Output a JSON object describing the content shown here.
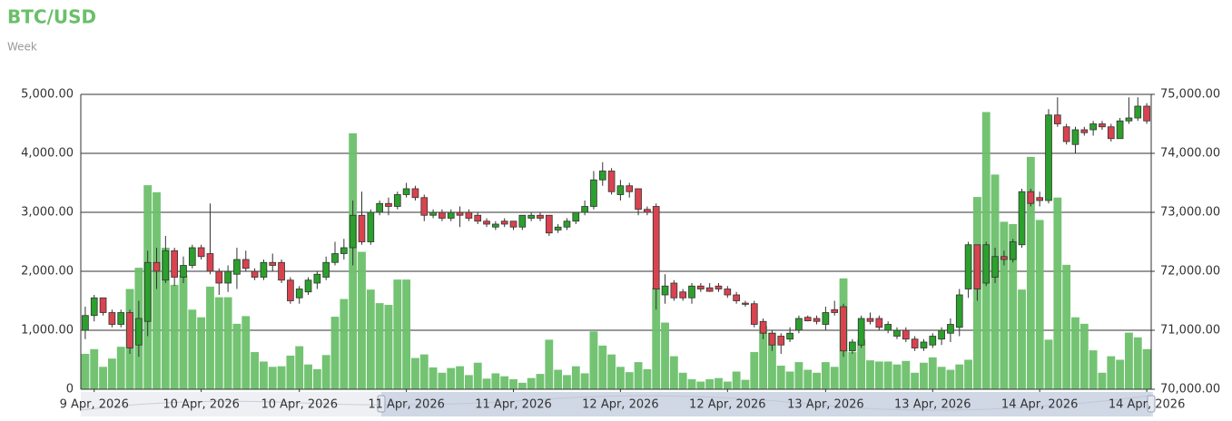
{
  "chart_data": {
    "type": "candlestick",
    "title": "BTC/USD",
    "subtitle": "Week",
    "categories": [
      null,
      "9 Apr, 2026",
      null,
      null,
      null,
      null,
      null,
      null,
      null,
      null,
      null,
      null,
      null,
      "10 Apr, 2026",
      null,
      null,
      null,
      null,
      null,
      null,
      null,
      null,
      null,
      null,
      "10 Apr, 2026",
      null,
      null,
      null,
      null,
      null,
      null,
      null,
      null,
      null,
      null,
      null,
      "11 Apr, 2026",
      null,
      null,
      null,
      null,
      null,
      null,
      null,
      null,
      null,
      null,
      null,
      "11 Apr, 2026",
      null,
      null,
      null,
      null,
      null,
      null,
      null,
      null,
      null,
      null,
      null,
      "12 Apr, 2026",
      null,
      null,
      null,
      null,
      null,
      null,
      null,
      null,
      null,
      null,
      null,
      "12 Apr, 2026",
      null,
      null,
      null,
      null,
      null,
      null,
      null,
      null,
      null,
      null,
      "13 Apr, 2026",
      null,
      null,
      null,
      null,
      null,
      null,
      null,
      null,
      null,
      null,
      null,
      "13 Apr, 2026",
      null,
      null,
      null,
      null,
      null,
      null,
      null,
      null,
      null,
      null,
      null,
      "14 Apr, 2026",
      null,
      null,
      null,
      null,
      null,
      null,
      null,
      null,
      null,
      null,
      null,
      "14 Apr, 2026"
    ],
    "ylim": [
      0,
      5000
    ],
    "yticks": [
      0,
      {
        "value": 1000,
        "label": "1,000.00"
      },
      {
        "value": 2000,
        "label": "2,000.00"
      },
      {
        "value": 3000,
        "label": "3,000.00"
      },
      {
        "value": 4000,
        "label": "4,000.00"
      },
      {
        "value": 5000,
        "label": "5,000.00"
      }
    ],
    "y2lim": [
      70000,
      75000
    ],
    "y2ticks": [
      {
        "value": 70000,
        "label": "70,000.00"
      },
      {
        "value": 71000,
        "label": "71,000.00"
      },
      {
        "value": 72000,
        "label": "72,000.00"
      },
      {
        "value": 73000,
        "label": "73,000.00"
      },
      {
        "value": 74000,
        "label": "74,000.00"
      },
      {
        "value": 75000,
        "label": "75,000.00"
      }
    ],
    "grid": true,
    "volume": {
      "color": "#6cc06c",
      "values": [
        600,
        680,
        380,
        520,
        720,
        1700,
        2060,
        3460,
        3340,
        2400,
        1770,
        1930,
        1350,
        1220,
        1740,
        1560,
        1560,
        1110,
        1240,
        630,
        470,
        380,
        390,
        570,
        730,
        420,
        340,
        580,
        1230,
        1530,
        4340,
        2330,
        1690,
        1460,
        1430,
        1860,
        1860,
        530,
        590,
        370,
        280,
        360,
        390,
        240,
        450,
        180,
        270,
        220,
        170,
        110,
        190,
        260,
        840,
        330,
        240,
        390,
        270,
        980,
        740,
        590,
        380,
        290,
        460,
        340,
        1720,
        1130,
        560,
        280,
        170,
        130,
        170,
        190,
        130,
        300,
        160,
        630,
        1070,
        960,
        400,
        300,
        460,
        330,
        280,
        460,
        380,
        1880,
        630,
        840,
        490,
        470,
        470,
        420,
        480,
        280,
        450,
        540,
        380,
        330,
        420,
        500,
        3260,
        4700,
        3640,
        2840,
        2800,
        1690,
        3940,
        2870,
        840,
        3250,
        2110,
        1220,
        1110,
        660,
        280,
        560,
        500,
        960,
        880,
        680
      ]
    },
    "ohlc": {
      "axis": "y2",
      "up_color": "#2ca02c",
      "down_color": "#d9434f",
      "open": [
        71000,
        71250,
        71550,
        71300,
        71100,
        71300,
        70750,
        71150,
        72150,
        71850,
        72350,
        71900,
        72100,
        72400,
        72300,
        72000,
        71800,
        71950,
        72200,
        72000,
        71900,
        72150,
        72150,
        71850,
        71550,
        71650,
        71800,
        71900,
        72150,
        72300,
        72400,
        72950,
        72500,
        73000,
        73150,
        73100,
        73300,
        73400,
        73250,
        72950,
        73000,
        72900,
        73000,
        73000,
        72950,
        72850,
        72750,
        72850,
        72850,
        72750,
        72900,
        72950,
        72950,
        72700,
        72750,
        72850,
        73000,
        73100,
        73550,
        73700,
        73300,
        73450,
        73400,
        73050,
        73100,
        71600,
        71800,
        71650,
        71550,
        71750,
        71720,
        71750,
        71700,
        71600,
        71460,
        71450,
        71150,
        70950,
        70900,
        70850,
        71000,
        71220,
        71200,
        71100,
        71350,
        71400,
        70650,
        70750,
        71200,
        71200,
        71000,
        70900,
        71000,
        70850,
        70700,
        70750,
        70850,
        70950,
        71050,
        71700,
        72450,
        71800,
        71900,
        72250,
        72200,
        72450,
        73350,
        73250,
        73200,
        74650,
        74450,
        74150,
        74400,
        74400,
        74500,
        74450,
        74250,
        74550,
        74600,
        74800
      ],
      "high": [
        71400,
        71600,
        71550,
        71350,
        71350,
        71350,
        71500,
        72350,
        72400,
        72600,
        72400,
        72250,
        72450,
        72450,
        73150,
        72050,
        72100,
        72400,
        72350,
        72050,
        72200,
        72300,
        72200,
        71900,
        71750,
        71900,
        72000,
        72250,
        72500,
        72550,
        73200,
        73350,
        73050,
        73200,
        73250,
        73350,
        73500,
        73450,
        73300,
        73050,
        73050,
        73050,
        73100,
        73050,
        73000,
        72900,
        72850,
        72900,
        72850,
        72950,
        73000,
        73000,
        72950,
        72800,
        72900,
        73000,
        73200,
        73700,
        73850,
        73750,
        73550,
        73500,
        73400,
        73100,
        73150,
        71950,
        71850,
        71700,
        71800,
        71800,
        71800,
        71800,
        71750,
        71650,
        71500,
        71500,
        71200,
        71000,
        70950,
        71050,
        71250,
        71250,
        71250,
        71400,
        71500,
        71450,
        70850,
        71250,
        71300,
        71250,
        71150,
        71050,
        71050,
        70900,
        70850,
        70950,
        71050,
        71200,
        71700,
        72500,
        72450,
        72500,
        72400,
        72350,
        72550,
        73400,
        73400,
        73350,
        74750,
        74950,
        74500,
        74450,
        74450,
        74550,
        74550,
        74500,
        74600,
        74950,
        74950,
        74850
      ],
      "low": [
        70850,
        71150,
        71250,
        71050,
        71050,
        70600,
        70550,
        70900,
        71700,
        71800,
        71750,
        71800,
        72050,
        72200,
        71950,
        71600,
        71650,
        71700,
        72000,
        71850,
        71850,
        72000,
        71800,
        71450,
        71450,
        71600,
        71700,
        71850,
        72100,
        72200,
        72100,
        72450,
        72450,
        72950,
        72950,
        73050,
        73250,
        73200,
        72850,
        72900,
        72850,
        72850,
        72750,
        72850,
        72800,
        72750,
        72700,
        72750,
        72700,
        72700,
        72850,
        72850,
        72600,
        72650,
        72700,
        72800,
        72950,
        73050,
        73450,
        73300,
        73200,
        73250,
        72950,
        72950,
        71350,
        71450,
        71500,
        71500,
        71450,
        71650,
        71650,
        71650,
        71550,
        71450,
        71400,
        71050,
        70850,
        70650,
        70600,
        70800,
        70950,
        71150,
        71100,
        71000,
        71250,
        70550,
        70600,
        70700,
        71100,
        71000,
        70950,
        70850,
        70800,
        70650,
        70650,
        70700,
        70750,
        70800,
        70900,
        71550,
        71500,
        71750,
        71800,
        72100,
        72150,
        72400,
        73100,
        73100,
        73150,
        74450,
        74150,
        74000,
        74300,
        74300,
        74400,
        74200,
        74250,
        74500,
        74550,
        74500
      ],
      "close": [
        71250,
        71550,
        71300,
        71100,
        71300,
        70700,
        71200,
        72150,
        72000,
        72350,
        71900,
        72100,
        72400,
        72250,
        72000,
        71800,
        72000,
        72200,
        72050,
        71900,
        72150,
        72100,
        71850,
        71500,
        71700,
        71850,
        71950,
        72150,
        72300,
        72400,
        72950,
        72500,
        73000,
        73150,
        73100,
        73300,
        73400,
        73250,
        72950,
        73000,
        72900,
        73000,
        72950,
        72900,
        72850,
        72800,
        72800,
        72800,
        72750,
        72950,
        72950,
        72900,
        72650,
        72750,
        72850,
        73000,
        73100,
        73550,
        73700,
        73350,
        73450,
        73350,
        73050,
        73000,
        71700,
        71750,
        71550,
        71550,
        71750,
        71700,
        71660,
        71700,
        71600,
        71500,
        71440,
        71100,
        70950,
        70750,
        70750,
        70950,
        71200,
        71160,
        71150,
        71300,
        71300,
        70650,
        70800,
        71200,
        71150,
        71050,
        71100,
        71000,
        70850,
        70700,
        70800,
        70900,
        71000,
        71100,
        71600,
        72450,
        71700,
        72450,
        72250,
        72200,
        72500,
        73350,
        73150,
        73200,
        74650,
        74500,
        74200,
        74400,
        74350,
        74500,
        74450,
        74250,
        74550,
        74600,
        74800,
        74550
      ]
    }
  }
}
